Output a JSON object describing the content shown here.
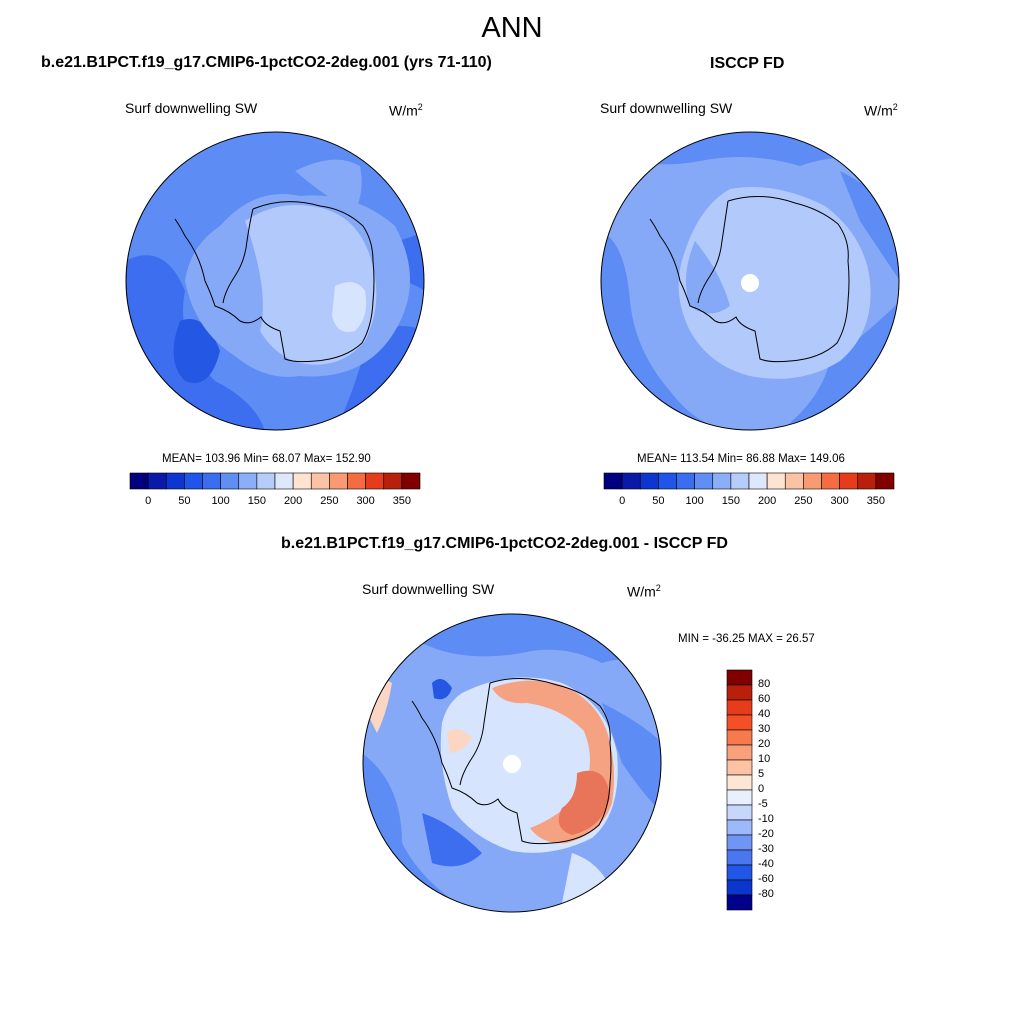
{
  "title": "ANN",
  "panels": [
    {
      "id": "model",
      "case_title": "b.e21.B1PCT.f19_g17.CMIP6-1pctCO2-2deg.001 (yrs 71-110)",
      "variable": "Surf downwelling SW",
      "units_base": "W/m",
      "units_exp": "2",
      "stats": "MEAN= 103.96  Min=  68.07  Max= 152.90",
      "mean": 103.96,
      "min": 68.07,
      "max": 152.9
    },
    {
      "id": "obs",
      "case_title": "ISCCP FD",
      "variable": "Surf downwelling SW",
      "units_base": "W/m",
      "units_exp": "2",
      "stats": "MEAN= 113.54  Min=  86.88  Max= 149.06",
      "mean": 113.54,
      "min": 86.88,
      "max": 149.06
    },
    {
      "id": "diff",
      "case_title": "b.e21.B1PCT.f19_g17.CMIP6-1pctCO2-2deg.001 - ISCCP FD",
      "variable": "Surf downwelling SW",
      "units_base": "W/m",
      "units_exp": "2",
      "stats": "MIN = -36.25 MAX =  26.57",
      "min": -36.25,
      "max": 26.57
    }
  ],
  "colorbar_abs": {
    "labels": [
      "0",
      "50",
      "100",
      "150",
      "200",
      "250",
      "300",
      "350"
    ],
    "colors": [
      "#00007f",
      "#0a1aa8",
      "#0d35cf",
      "#1f55e8",
      "#3a6ef0",
      "#5f8ef5",
      "#8aaef8",
      "#b6ccfb",
      "#dde8fd",
      "#fde3d0",
      "#fbc2a3",
      "#f89a72",
      "#f56c42",
      "#e63c1c",
      "#b8200c",
      "#800000"
    ]
  },
  "colorbar_diff": {
    "labels": [
      "80",
      "60",
      "40",
      "30",
      "20",
      "10",
      "5",
      "0",
      "-5",
      "-10",
      "-20",
      "-30",
      "-40",
      "-60",
      "-80"
    ],
    "colors": [
      "#800000",
      "#b8200c",
      "#e63c1c",
      "#f54f27",
      "#f67a4e",
      "#f8a07a",
      "#fbc2a3",
      "#fde6d6",
      "#e9f0fd",
      "#c6d7fb",
      "#9cbaf9",
      "#6f96f4",
      "#4a76ef",
      "#2156e6",
      "#0a36cc",
      "#00008a"
    ]
  },
  "colors": {
    "ocean_dark": "#3d6ef0",
    "ocean_mid": "#5c8cf4",
    "ocean_light": "#85a9f7",
    "land_light": "#b2c9fb",
    "land_pale": "#d7e4fd",
    "warm_light": "#fbd6c2",
    "warm_mid": "#f5a283",
    "warm_dark": "#e8755a"
  }
}
